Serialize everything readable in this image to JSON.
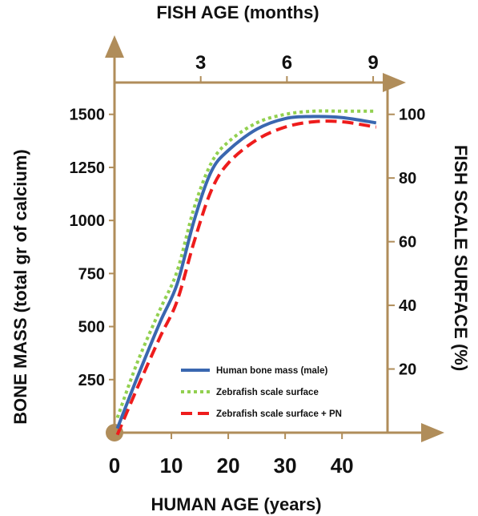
{
  "chart_data": {
    "type": "line",
    "top_axis": {
      "title": "FISH AGE (months)",
      "ticks": [
        3,
        6,
        9
      ],
      "range": [
        0,
        9.5
      ]
    },
    "bottom_axis": {
      "title": "HUMAN AGE (years)",
      "ticks": [
        0,
        10,
        20,
        30,
        40
      ],
      "range": [
        0,
        48
      ]
    },
    "left_axis": {
      "title": "BONE MASS (total gr of calcium)",
      "ticks": [
        250,
        500,
        750,
        1000,
        1250,
        1500
      ],
      "range": [
        0,
        1650
      ]
    },
    "right_axis": {
      "title": "FISH SCALE SURFACE (%)",
      "ticks": [
        20,
        40,
        60,
        80,
        100
      ],
      "range": [
        0,
        110
      ]
    },
    "series": [
      {
        "name": "Human bone mass (male)",
        "color": "#3a67b0",
        "style": "solid",
        "x": [
          0.5,
          4,
          8,
          11,
          14,
          17,
          20,
          25,
          30,
          35,
          40,
          46
        ],
        "y": [
          20,
          260,
          520,
          700,
          1000,
          1230,
          1330,
          1430,
          1480,
          1490,
          1485,
          1460
        ]
      },
      {
        "name": "Zebrafish scale surface",
        "color": "#92d050",
        "style": "dotted",
        "x": [
          0.5,
          4,
          8,
          11,
          14,
          17,
          20,
          25,
          30,
          35,
          40,
          46
        ],
        "y": [
          70,
          330,
          580,
          760,
          1060,
          1270,
          1370,
          1460,
          1500,
          1515,
          1515,
          1515
        ]
      },
      {
        "name": "Zebrafish scale surface + PN",
        "color": "#ee1c1c",
        "style": "dashed",
        "x": [
          0.5,
          4,
          8,
          11,
          14,
          17,
          20,
          25,
          30,
          35,
          40,
          46
        ],
        "y": [
          -10,
          210,
          450,
          620,
          900,
          1140,
          1270,
          1380,
          1440,
          1465,
          1465,
          1440
        ]
      }
    ],
    "legend_position": "bottom-right inside plot",
    "grid": false,
    "axis_color": "#b08d5a"
  }
}
